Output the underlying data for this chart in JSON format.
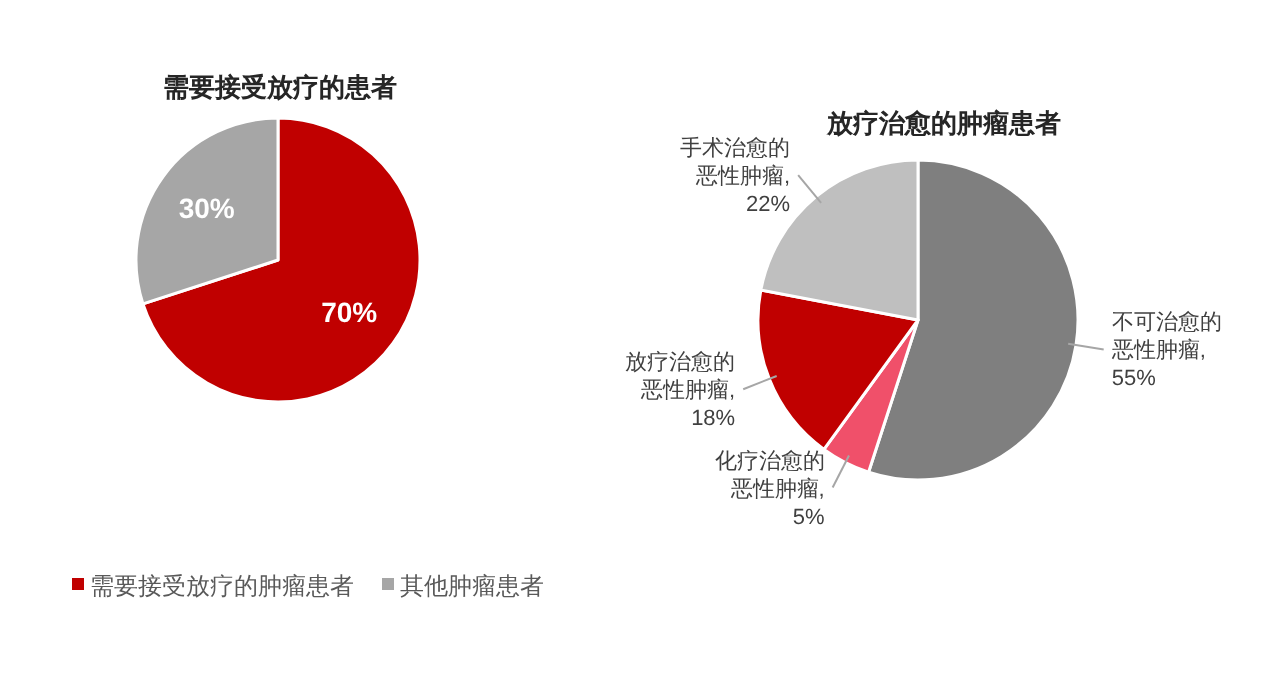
{
  "chart_data": [
    {
      "type": "pie",
      "title": "需要接受放疗的患者",
      "categories": [
        "需要接受放疗的肿瘤患者",
        "其他肿瘤患者"
      ],
      "values": [
        70,
        30
      ],
      "colors": [
        "#c00000",
        "#a6a6a6"
      ],
      "value_labels": [
        "70%",
        "30%"
      ],
      "legend": "bottom"
    },
    {
      "type": "pie",
      "title": "放疗治愈的肿瘤患者",
      "categories": [
        "不可治愈的恶性肿瘤, 55%",
        "化疗治愈的恶性肿瘤, 5%",
        "放疗治愈的恶性肿瘤, 18%",
        "手术治愈的恶性肿瘤, 22%"
      ],
      "values": [
        55,
        5,
        18,
        22
      ],
      "colors": [
        "#7f7f7f",
        "#f0506a",
        "#c00000",
        "#bfbfbf"
      ]
    }
  ]
}
